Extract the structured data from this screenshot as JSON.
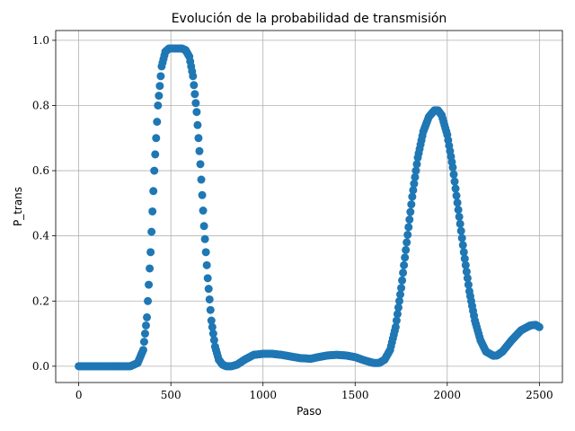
{
  "chart_data": {
    "type": "scatter",
    "title": "Evolución de la probabilidad de transmisión",
    "xlabel": "Paso",
    "ylabel": "P_trans",
    "xlim": [
      -125,
      2625
    ],
    "ylim": [
      -0.05,
      1.03
    ],
    "xticks": [
      0,
      500,
      1000,
      1500,
      2000,
      2500
    ],
    "yticks": [
      0.0,
      0.2,
      0.4,
      0.6,
      0.8,
      1.0
    ],
    "xtick_labels": [
      "0",
      "500",
      "1000",
      "1500",
      "2000",
      "2500"
    ],
    "ytick_labels": [
      "0.0",
      "0.2",
      "0.4",
      "0.6",
      "0.8",
      "1.0"
    ],
    "grid": true,
    "color": "#1f77b4",
    "series": [
      {
        "x": [
          0,
          100,
          200,
          280,
          320,
          350,
          370,
          390,
          410,
          430,
          450,
          470,
          490,
          500,
          520,
          560,
          580,
          600,
          620,
          640,
          660,
          680,
          700,
          720,
          740,
          760,
          780,
          800,
          830,
          860,
          900,
          950,
          1000,
          1050,
          1100,
          1150,
          1200,
          1260,
          1300,
          1350,
          1400,
          1450,
          1500,
          1550,
          1600,
          1630,
          1660,
          1690,
          1720,
          1750,
          1780,
          1810,
          1840,
          1870,
          1900,
          1930,
          1950,
          1970,
          2000,
          2030,
          2060,
          2090,
          2120,
          2150,
          2180,
          2210,
          2250,
          2270,
          2300,
          2350,
          2400,
          2450,
          2480,
          2500
        ],
        "y": [
          0.0,
          0.0,
          0.0,
          0.0,
          0.01,
          0.05,
          0.15,
          0.35,
          0.6,
          0.8,
          0.92,
          0.965,
          0.975,
          0.975,
          0.975,
          0.975,
          0.97,
          0.95,
          0.89,
          0.78,
          0.62,
          0.43,
          0.27,
          0.14,
          0.06,
          0.02,
          0.005,
          0.0,
          0.0,
          0.005,
          0.02,
          0.035,
          0.038,
          0.038,
          0.035,
          0.03,
          0.025,
          0.023,
          0.028,
          0.033,
          0.035,
          0.033,
          0.028,
          0.018,
          0.01,
          0.01,
          0.02,
          0.05,
          0.12,
          0.24,
          0.38,
          0.52,
          0.64,
          0.72,
          0.765,
          0.785,
          0.785,
          0.77,
          0.71,
          0.61,
          0.48,
          0.35,
          0.23,
          0.14,
          0.08,
          0.045,
          0.032,
          0.033,
          0.045,
          0.08,
          0.11,
          0.125,
          0.127,
          0.12
        ]
      }
    ]
  }
}
